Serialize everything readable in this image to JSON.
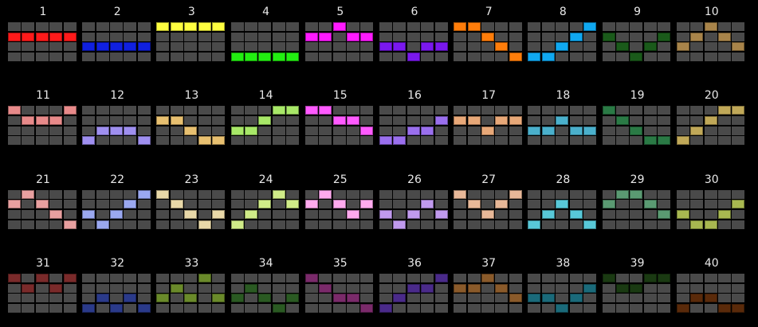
{
  "off_color": "#4a4a4a",
  "patterns": [
    {
      "label": "1",
      "color": "#ff1a1a",
      "rows": [
        1,
        1,
        1,
        1,
        1
      ]
    },
    {
      "label": "2",
      "color": "#1020e0",
      "rows": [
        2,
        2,
        2,
        2,
        2
      ]
    },
    {
      "label": "3",
      "color": "#ffff40",
      "rows": [
        0,
        0,
        0,
        0,
        0
      ]
    },
    {
      "label": "4",
      "color": "#22ee11",
      "rows": [
        3,
        3,
        3,
        3,
        3
      ]
    },
    {
      "label": "5",
      "color": "#ff1aff",
      "rows": [
        1,
        1,
        0,
        1,
        1
      ]
    },
    {
      "label": "6",
      "color": "#7a18ee",
      "rows": [
        2,
        2,
        3,
        2,
        2
      ]
    },
    {
      "label": "7",
      "color": "#ff7d0a",
      "rows": [
        0,
        0,
        1,
        2,
        3
      ]
    },
    {
      "label": "8",
      "color": "#10a8f0",
      "rows": [
        3,
        3,
        2,
        1,
        0
      ]
    },
    {
      "label": "9",
      "color": "#1a5a1a",
      "rows": [
        1,
        2,
        3,
        2,
        1
      ]
    },
    {
      "label": "10",
      "color": "#a8844a",
      "rows": [
        2,
        1,
        0,
        1,
        2
      ]
    },
    {
      "label": "11",
      "color": "#e88a8a",
      "rows": [
        0,
        1,
        1,
        1,
        0
      ]
    },
    {
      "label": "12",
      "color": "#9f8ff0",
      "rows": [
        3,
        2,
        2,
        2,
        3
      ]
    },
    {
      "label": "13",
      "color": "#e8c070",
      "rows": [
        1,
        1,
        2,
        3,
        3
      ]
    },
    {
      "label": "14",
      "color": "#a8e868",
      "rows": [
        2,
        2,
        1,
        0,
        0
      ]
    },
    {
      "label": "15",
      "color": "#ff5aff",
      "rows": [
        0,
        0,
        1,
        1,
        2
      ]
    },
    {
      "label": "16",
      "color": "#9a6fee",
      "rows": [
        3,
        3,
        2,
        2,
        1
      ]
    },
    {
      "label": "17",
      "color": "#e8a878",
      "rows": [
        1,
        1,
        2,
        1,
        1
      ]
    },
    {
      "label": "18",
      "color": "#4ab0cc",
      "rows": [
        2,
        2,
        1,
        2,
        2
      ]
    },
    {
      "label": "19",
      "color": "#2a7a45",
      "rows": [
        0,
        1,
        2,
        3,
        3
      ]
    },
    {
      "label": "20",
      "color": "#c0a858",
      "rows": [
        3,
        2,
        1,
        0,
        0
      ]
    },
    {
      "label": "21",
      "color": "#e8a0a0",
      "rows": [
        1,
        0,
        1,
        2,
        3
      ]
    },
    {
      "label": "22",
      "color": "#9aa8f0",
      "rows": [
        2,
        3,
        2,
        1,
        0
      ]
    },
    {
      "label": "23",
      "color": "#e8d8a8",
      "rows": [
        0,
        1,
        2,
        3,
        2
      ]
    },
    {
      "label": "24",
      "color": "#d0ec88",
      "rows": [
        3,
        2,
        1,
        0,
        1
      ]
    },
    {
      "label": "25",
      "color": "#ffaaee",
      "rows": [
        1,
        0,
        1,
        2,
        1
      ]
    },
    {
      "label": "26",
      "color": "#c09aee",
      "rows": [
        2,
        3,
        2,
        1,
        2
      ]
    },
    {
      "label": "27",
      "color": "#e8b898",
      "rows": [
        0,
        1,
        2,
        1,
        0
      ]
    },
    {
      "label": "28",
      "color": "#58c8d8",
      "rows": [
        3,
        2,
        1,
        2,
        3
      ]
    },
    {
      "label": "29",
      "color": "#5a9a72",
      "rows": [
        1,
        0,
        0,
        1,
        2
      ]
    },
    {
      "label": "30",
      "color": "#a8b850",
      "rows": [
        2,
        3,
        3,
        2,
        1
      ]
    },
    {
      "label": "31",
      "color": "#7a2a2a",
      "rows": [
        0,
        1,
        0,
        1,
        0
      ]
    },
    {
      "label": "32",
      "color": "#2a3a8a",
      "rows": [
        3,
        2,
        3,
        2,
        3
      ]
    },
    {
      "label": "33",
      "color": "#6a8a2a",
      "rows": [
        2,
        1,
        2,
        0,
        2
      ]
    },
    {
      "label": "34",
      "color": "#2a5a22",
      "rows": [
        2,
        1,
        2,
        3,
        2
      ]
    },
    {
      "label": "35",
      "color": "#7a2a6a",
      "rows": [
        0,
        1,
        2,
        2,
        3
      ]
    },
    {
      "label": "36",
      "color": "#4a2a8a",
      "rows": [
        3,
        2,
        1,
        1,
        0
      ]
    },
    {
      "label": "37",
      "color": "#8a5a2a",
      "rows": [
        1,
        1,
        0,
        1,
        2
      ]
    },
    {
      "label": "38",
      "color": "#1a6a7a",
      "rows": [
        2,
        2,
        3,
        2,
        1
      ]
    },
    {
      "label": "39",
      "color": "#1a3a12",
      "rows": [
        0,
        1,
        1,
        0,
        0
      ]
    },
    {
      "label": "40",
      "color": "#5a2a0a",
      "rows": [
        3,
        2,
        2,
        3,
        3
      ]
    }
  ]
}
